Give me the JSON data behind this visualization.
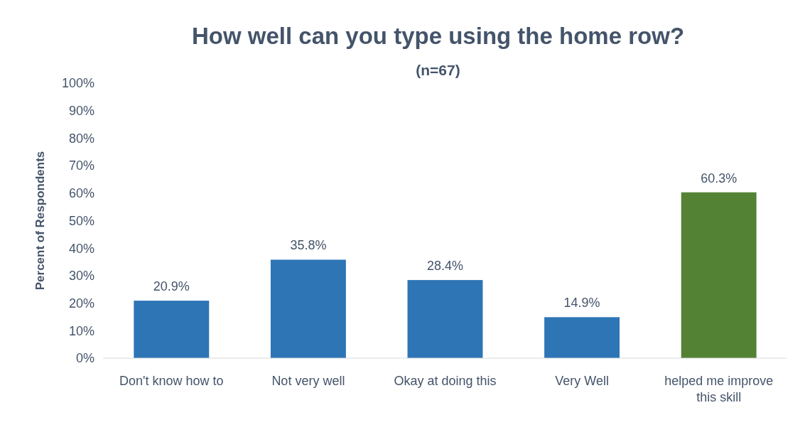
{
  "chart_data": {
    "type": "bar",
    "title": "How well can you type using the home row?",
    "subtitle": "(n=67)",
    "ylabel": "Percent of Respondents",
    "categories": [
      "Don't know how to",
      "Not very well",
      "Okay at doing this",
      "Very Well",
      "helped me improve this skill"
    ],
    "values": [
      20.9,
      35.8,
      28.4,
      14.9,
      60.3
    ],
    "colors": [
      "#2e75b6",
      "#2e75b6",
      "#2e75b6",
      "#2e75b6",
      "#548235"
    ],
    "value_labels": [
      "20.9%",
      "35.8%",
      "28.4%",
      "14.9%",
      "60.3%"
    ],
    "ylim": [
      0,
      100
    ],
    "yticks": [
      {
        "value": 0,
        "label": "0%"
      },
      {
        "value": 10,
        "label": "10%"
      },
      {
        "value": 20,
        "label": "20%"
      },
      {
        "value": 30,
        "label": "30%"
      },
      {
        "value": 40,
        "label": "40%"
      },
      {
        "value": 50,
        "label": "50%"
      },
      {
        "value": 60,
        "label": "60%"
      },
      {
        "value": 70,
        "label": "70%"
      },
      {
        "value": 80,
        "label": "80%"
      },
      {
        "value": 90,
        "label": "90%"
      },
      {
        "value": 100,
        "label": "100%"
      }
    ],
    "grid": false
  }
}
